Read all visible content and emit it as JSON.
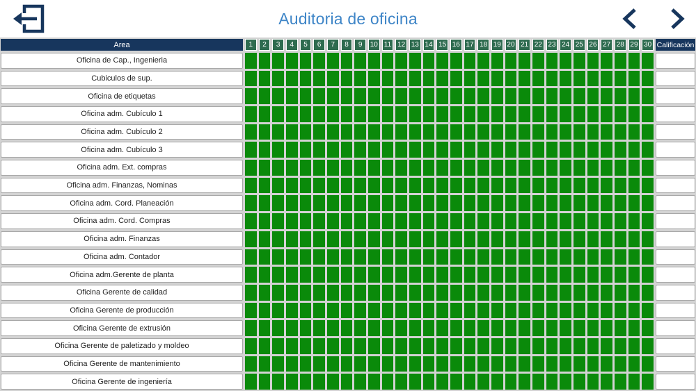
{
  "header": {
    "title": "Auditoria de oficina",
    "back_icon": "exit-arrow-icon",
    "prev_icon": "chevron-left-icon",
    "next_icon": "chevron-right-icon"
  },
  "colors": {
    "navy": "#17365d",
    "title_blue": "#3e85c7",
    "header_green": "#2e6b4f",
    "cell_green": "#0a8a0a",
    "grid_background": "#d3d3d3",
    "cell_border": "#a8a8a8"
  },
  "table": {
    "area_header": "Area",
    "day_columns": [
      "1",
      "2",
      "3",
      "4",
      "5",
      "6",
      "7",
      "8",
      "9",
      "10",
      "11",
      "12",
      "13",
      "14",
      "15",
      "16",
      "17",
      "18",
      "19",
      "20",
      "21",
      "22",
      "23",
      "24",
      "25",
      "26",
      "27",
      "28",
      "29",
      "30"
    ],
    "score_header": "Calificación",
    "rows": [
      {
        "area": "Oficina de Cap., Ingenieria",
        "filled_days": 30,
        "calificacion": ""
      },
      {
        "area": "Cubiculos de sup.",
        "filled_days": 30,
        "calificacion": ""
      },
      {
        "area": "Oficina de etiquetas",
        "filled_days": 30,
        "calificacion": ""
      },
      {
        "area": "Oficina adm. Cubículo 1",
        "filled_days": 30,
        "calificacion": ""
      },
      {
        "area": "Oficina adm. Cubículo 2",
        "filled_days": 30,
        "calificacion": ""
      },
      {
        "area": "Oficina adm. Cubículo 3",
        "filled_days": 30,
        "calificacion": ""
      },
      {
        "area": "Oficina adm. Ext. compras",
        "filled_days": 30,
        "calificacion": ""
      },
      {
        "area": "Oficina adm. Finanzas, Nominas",
        "filled_days": 30,
        "calificacion": ""
      },
      {
        "area": "Oficina adm. Cord. Planeación",
        "filled_days": 30,
        "calificacion": ""
      },
      {
        "area": "Oficina adm. Cord. Compras",
        "filled_days": 30,
        "calificacion": ""
      },
      {
        "area": "Oficina adm. Finanzas",
        "filled_days": 30,
        "calificacion": ""
      },
      {
        "area": "Oficina adm. Contador",
        "filled_days": 30,
        "calificacion": ""
      },
      {
        "area": "Oficina adm.Gerente de planta",
        "filled_days": 30,
        "calificacion": ""
      },
      {
        "area": "Oficina Gerente de calidad",
        "filled_days": 30,
        "calificacion": ""
      },
      {
        "area": "Oficina Gerente de producción",
        "filled_days": 30,
        "calificacion": ""
      },
      {
        "area": "Oficina Gerente de extrusión",
        "filled_days": 30,
        "calificacion": ""
      },
      {
        "area": "Oficina Gerente de paletizado y moldeo",
        "filled_days": 30,
        "calificacion": ""
      },
      {
        "area": "Oficina Gerente de mantenimiento",
        "filled_days": 30,
        "calificacion": ""
      },
      {
        "area": "Oficina Gerente de ingeniería",
        "filled_days": 30,
        "calificacion": ""
      }
    ]
  }
}
